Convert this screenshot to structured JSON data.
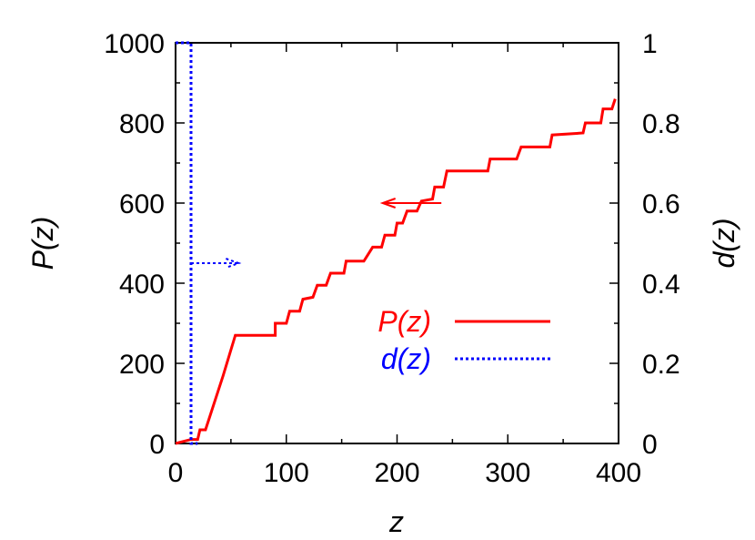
{
  "chart_data": {
    "type": "line",
    "xlabel": "z",
    "ylabel_left": "P(z)",
    "ylabel_right": "d(z)",
    "xlim": [
      0,
      400
    ],
    "ylim_left": [
      0,
      1000
    ],
    "ylim_right": [
      0,
      1
    ],
    "x_ticks": [
      0,
      100,
      200,
      300,
      400
    ],
    "y_left_ticks": [
      0,
      200,
      400,
      600,
      800,
      1000
    ],
    "y_right_ticks": [
      0,
      0.2,
      0.4,
      0.6,
      0.8,
      1
    ],
    "grid": false,
    "legend_position": "center-right",
    "series": [
      {
        "name": "P(z)",
        "axis": "left",
        "color": "#ff0000",
        "style": "solid",
        "points": [
          [
            0,
            0
          ],
          [
            14,
            10
          ],
          [
            20,
            10
          ],
          [
            22,
            34
          ],
          [
            27,
            34
          ],
          [
            43,
            170
          ],
          [
            54,
            270
          ],
          [
            90,
            270
          ],
          [
            90,
            300
          ],
          [
            100,
            300
          ],
          [
            103,
            330
          ],
          [
            112,
            330
          ],
          [
            115,
            360
          ],
          [
            124,
            365
          ],
          [
            128,
            395
          ],
          [
            136,
            395
          ],
          [
            140,
            425
          ],
          [
            152,
            425
          ],
          [
            154,
            455
          ],
          [
            170,
            455
          ],
          [
            178,
            490
          ],
          [
            186,
            490
          ],
          [
            189,
            520
          ],
          [
            198,
            520
          ],
          [
            200,
            550
          ],
          [
            205,
            550
          ],
          [
            209,
            580
          ],
          [
            218,
            580
          ],
          [
            222,
            605
          ],
          [
            232,
            610
          ],
          [
            234,
            640
          ],
          [
            242,
            640
          ],
          [
            245,
            680
          ],
          [
            282,
            680
          ],
          [
            284,
            710
          ],
          [
            308,
            710
          ],
          [
            312,
            740
          ],
          [
            338,
            740
          ],
          [
            340,
            770
          ],
          [
            368,
            775
          ],
          [
            370,
            800
          ],
          [
            384,
            800
          ],
          [
            386,
            835
          ],
          [
            394,
            835
          ],
          [
            397,
            860
          ]
        ]
      },
      {
        "name": "d(z)",
        "axis": "right",
        "color": "#0000ff",
        "style": "dotted",
        "points": [
          [
            0,
            1
          ],
          [
            14,
            1
          ],
          [
            14,
            0
          ],
          [
            20,
            0
          ]
        ]
      }
    ],
    "annotations": [
      {
        "type": "arrow",
        "axis": "left",
        "color": "#ff0000",
        "from": [
          240,
          600
        ],
        "to": [
          187,
          600
        ]
      },
      {
        "type": "arrow",
        "axis": "left",
        "color": "#0000ff",
        "from": [
          14,
          450
        ],
        "to": [
          57,
          450
        ]
      }
    ]
  }
}
